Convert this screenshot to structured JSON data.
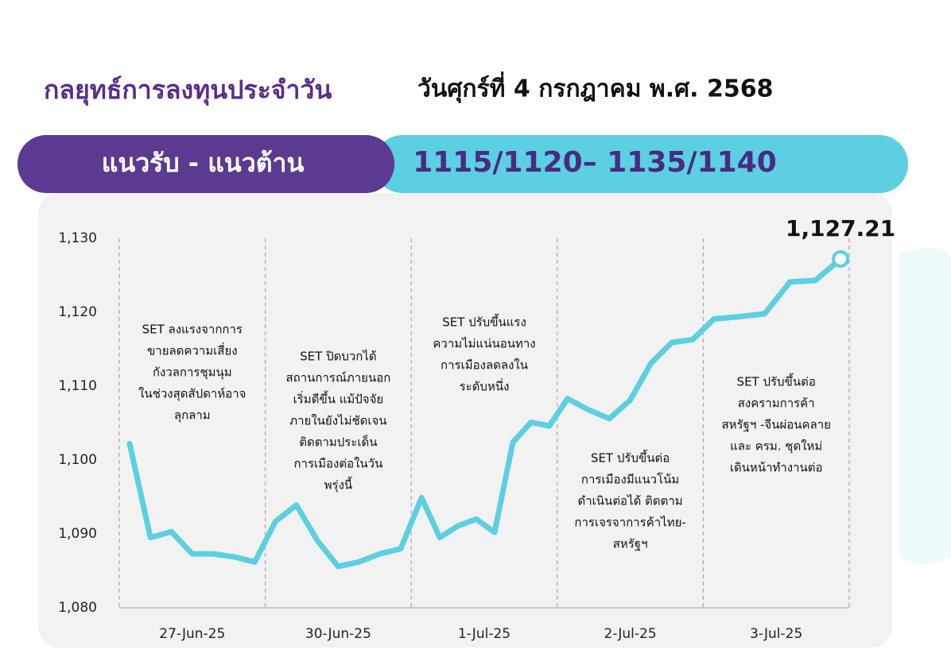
{
  "header": {
    "title": "กลยุทธ์การลงทุนประจำวัน",
    "date": "วันศุกร์ที่ 4 กรกฎาคม พ.ศ. 2568"
  },
  "banner": {
    "label": "แนวรับ - แนวต้าน",
    "value": "1115/1120– 1135/1140"
  },
  "chart_data": {
    "type": "line",
    "color": "#5ccfe0",
    "ylim": [
      1080,
      1130
    ],
    "yticks": [
      {
        "value": 1080,
        "label": "1,080"
      },
      {
        "value": 1090,
        "label": "1,090"
      },
      {
        "value": 1100,
        "label": "1,100"
      },
      {
        "value": 1110,
        "label": "1,110"
      },
      {
        "value": 1120,
        "label": "1,120"
      },
      {
        "value": 1130,
        "label": "1,130"
      }
    ],
    "days": [
      {
        "label": "27-Jun-25",
        "values": [
          1102.2,
          1089.5,
          1090.3,
          1087.3,
          1087.3,
          1086.9,
          1086.2
        ],
        "annotation": [
          "SET ลงแรงจากการ",
          "ขายลดความเสี่ยง",
          "กังวลการชุมนุม",
          "ในช่วงสุดสัปดาห์อาจ",
          "ลุกลาม"
        ]
      },
      {
        "label": "30-Jun-25",
        "values": [
          1091.7,
          1093.9,
          1089.1,
          1085.6,
          1086.2,
          1087.3,
          1088.0
        ],
        "annotation": [
          "SET ปิดบวกได้",
          "สถานการณ์ภายนอก",
          "เริ่มดีขึ้น แม้ปัจจัย",
          "ภายในยังไม่ชัดเจน",
          "ติดตามประเด็น",
          "การเมืองต่อในวัน",
          "พรุ่งนี้"
        ]
      },
      {
        "label": "1-Jul-25",
        "values": [
          1094.9,
          1089.5,
          1091.1,
          1092.0,
          1090.2,
          1102.4,
          1105.1,
          1104.6
        ],
        "annotation": [
          "SET ปรับขึ้นแรง",
          "ความไม่แน่นอนทาง",
          "การเมืองลดลงใน",
          "ระดับหนึ่ง"
        ]
      },
      {
        "label": "2-Jul-25",
        "values": [
          1108.3,
          1106.8,
          1105.6,
          1108.1,
          1113.1,
          1115.9,
          1116.3
        ],
        "annotation": [
          "SET ปรับขึ้นต่อ",
          "การเมืองมีแนวโน้ม",
          "ดำเนินต่อได้ ติดตาม",
          "การเจรจาการค้าไทย-",
          "สหรัฐฯ"
        ]
      },
      {
        "label": "3-Jul-25",
        "values": [
          1119.1,
          1119.4,
          1119.8,
          1124.1,
          1124.3,
          1127.21
        ],
        "value_labels": [
          null,
          null,
          null,
          null,
          null,
          "1,127.21"
        ],
        "annotation": [
          "SET ปรับขึ้นต่อ",
          "สงครามการค้า",
          "สหรัฐฯ -จีนผ่อนคลาย",
          "และ ครม. ชุดใหม่",
          "เดินหน้าทำงานต่อ"
        ]
      }
    ]
  }
}
